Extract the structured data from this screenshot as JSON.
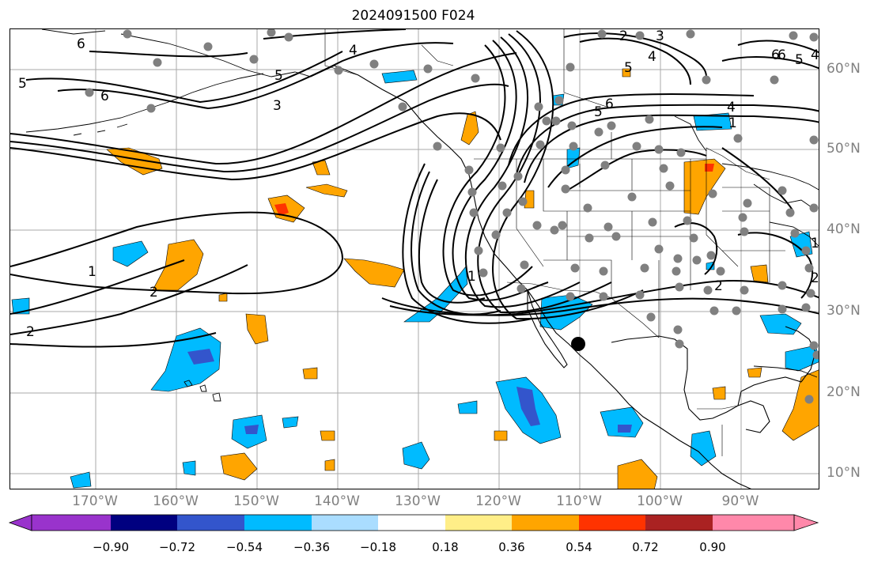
{
  "title": "2024091500 F024",
  "lon_labels": [
    "170°W",
    "160°W",
    "150°W",
    "140°W",
    "130°W",
    "120°W",
    "110°W",
    "100°W",
    "90°W"
  ],
  "lat_labels": [
    "60°N",
    "50°N",
    "40°N",
    "30°N",
    "20°N",
    "10°N"
  ],
  "colorbar": {
    "colors": [
      "#9933cc",
      "#000080",
      "#3355cc",
      "#00bbff",
      "#aaddff",
      "#ffffff",
      "#ffee88",
      "#ffa500",
      "#ff3300",
      "#aa2222",
      "#ff88aa"
    ],
    "tick_labels": [
      "−0.90",
      "−0.72",
      "−0.54",
      "−0.36",
      "−0.18",
      "0.18",
      "0.36",
      "0.54",
      "0.72",
      "0.90"
    ]
  },
  "contour_labels": [
    "6",
    "5",
    "6",
    "5",
    "3",
    "4",
    "2",
    "3",
    "4",
    "5",
    "6",
    "1",
    "2",
    "5",
    "6",
    "4",
    "1",
    "1",
    "2",
    "2",
    "2",
    "1",
    "6",
    "5",
    "4"
  ],
  "marker_icon": "black-dot-icon"
}
